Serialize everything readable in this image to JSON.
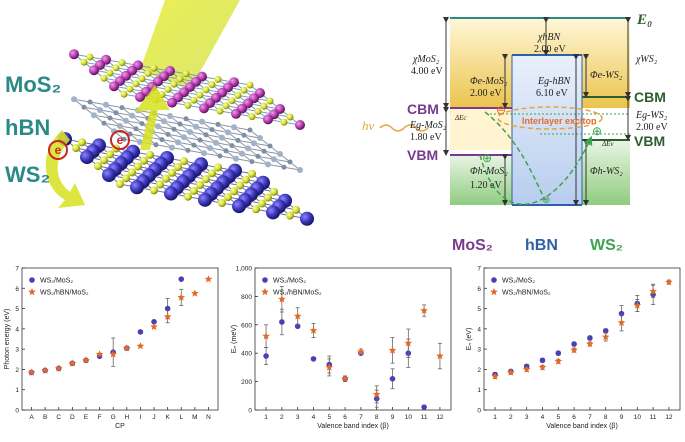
{
  "colors": {
    "mos2": "#7a3b8f",
    "hbn": "#2f5fa5",
    "ws2": "#3fa34d",
    "teal": "#2a8a86",
    "green_dark": "#2e5e2e",
    "blue_dot": "#4b3fb5",
    "orange_star": "#e46a2a",
    "gold": "#e9c75a"
  },
  "structure": {
    "labels": {
      "mos2": "MoS₂",
      "hbn": "hBN",
      "ws2": "WS₂"
    },
    "electron_symbols": [
      "e",
      "e"
    ]
  },
  "band_diagram": {
    "E0": "E₀",
    "CBM": "CBM",
    "VBM": "VBM",
    "hv": "hν",
    "interlayer": "Interlayer exciton",
    "chi_mos2_label": "χMoS₂",
    "chi_mos2_value": "4.00 eV",
    "chi_hbn_label": "χhBN",
    "chi_hbn_value": "2.00 eV",
    "chi_ws2_label": "χWS₂",
    "phi_e_mos2_label": "Φe-MoS₂",
    "phi_e_mos2_value": "2.00 eV",
    "eg_hbn_label": "Eg-hBN",
    "eg_hbn_value": "6.10 eV",
    "phi_e_ws2_label": "Φe-WS₂",
    "eg_mos2_label": "Eg-MoS₂",
    "eg_mos2_value": "1.80 eV",
    "eg_ws2_label": "Eg-WS₂",
    "eg_ws2_value": "2.00 eV",
    "dec_label": "ΔEc",
    "dev_label": "ΔEv",
    "phi_h_mos2_label": "Φh-MoS₂",
    "phi_h_mos2_value": "1.20 eV",
    "phi_h_ws2_label": "Φh-WS₂",
    "bottom_mos2": "MoS₂",
    "bottom_hbn": "hBN",
    "bottom_ws2": "WS₂",
    "plus": "⊕",
    "minus": "⊖"
  },
  "chart_data": [
    {
      "type": "scatter",
      "xlabel": "CP",
      "ylabel": "Photon energy (eV)",
      "ylim": [
        0,
        7
      ],
      "yticks": [
        "0",
        "1",
        "2",
        "3",
        "4",
        "5",
        "6",
        "7"
      ],
      "categories": [
        "A",
        "B",
        "C",
        "D",
        "E",
        "F",
        "G",
        "H",
        "I",
        "J",
        "K",
        "L",
        "M",
        "N"
      ],
      "legend": [
        "WS₂/MoS₂",
        "WS₂/hBN/MoS₂"
      ],
      "series": [
        {
          "name": "WS₂/MoS₂",
          "marker": "circle",
          "values": [
            1.85,
            1.95,
            2.05,
            2.3,
            2.45,
            2.65,
            2.85,
            3.05,
            3.85,
            4.35,
            5.0,
            6.45,
            null,
            null
          ],
          "err": [
            0,
            0,
            0,
            0,
            0,
            0,
            0.7,
            0,
            0,
            0,
            0.5,
            0,
            0,
            0
          ]
        },
        {
          "name": "WS₂/hBN/MoS₂",
          "marker": "star",
          "values": [
            1.85,
            1.95,
            2.05,
            2.3,
            2.45,
            2.75,
            2.75,
            3.05,
            3.15,
            4.1,
            4.6,
            5.55,
            5.75,
            6.45
          ],
          "err": [
            0,
            0,
            0,
            0,
            0,
            0,
            0,
            0,
            0,
            0,
            0.3,
            0.4,
            0,
            0
          ]
        }
      ]
    },
    {
      "type": "scatter",
      "xlabel": "Valence band index (β)",
      "ylabel": "Eₙ (meV)",
      "ylim": [
        0,
        1000
      ],
      "yticks": [
        "0",
        "200",
        "400",
        "600",
        "800",
        "1,000"
      ],
      "categories": [
        "1",
        "2",
        "3",
        "4",
        "5",
        "6",
        "7",
        "8",
        "9",
        "10",
        "11",
        "12"
      ],
      "legend": [
        "WS₂/MoS₂",
        "WS₂/hBN/MoS₂"
      ],
      "series": [
        {
          "name": "WS₂/MoS₂",
          "marker": "circle",
          "values": [
            380,
            620,
            590,
            360,
            320,
            220,
            400,
            80,
            220,
            400,
            20,
            null
          ],
          "err": [
            60,
            90,
            0,
            0,
            60,
            0,
            0,
            60,
            70,
            100,
            0,
            0
          ]
        },
        {
          "name": "WS₂/hBN/MoS₂",
          "marker": "star",
          "values": [
            520,
            780,
            660,
            560,
            300,
            220,
            410,
            110,
            420,
            470,
            700,
            380
          ],
          "err": [
            80,
            90,
            60,
            50,
            60,
            20,
            20,
            60,
            90,
            100,
            40,
            90
          ]
        }
      ]
    },
    {
      "type": "scatter",
      "xlabel": "Valence band index (β)",
      "ylabel": "Eₙ (eV)",
      "ylim": [
        0,
        7
      ],
      "yticks": [
        "0",
        "1",
        "2",
        "3",
        "4",
        "5",
        "6",
        "7"
      ],
      "categories": [
        "1",
        "2",
        "3",
        "4",
        "5",
        "6",
        "7",
        "8",
        "9",
        "10",
        "11",
        "12"
      ],
      "legend": [
        "WS₂/MoS₂",
        "WS₂/hBN/MoS₂"
      ],
      "series": [
        {
          "name": "WS₂/MoS₂",
          "marker": "circle",
          "values": [
            1.75,
            1.9,
            2.15,
            2.45,
            2.8,
            3.25,
            3.55,
            3.9,
            4.75,
            5.25,
            5.7,
            null
          ],
          "err": [
            0.1,
            0.1,
            0.1,
            0.1,
            0.1,
            0.1,
            0.1,
            0.1,
            0.4,
            0.4,
            0.5,
            0
          ]
        },
        {
          "name": "WS₂/hBN/MoS₂",
          "marker": "star",
          "values": [
            1.65,
            1.85,
            2.0,
            2.1,
            2.4,
            2.95,
            3.25,
            3.6,
            4.3,
            5.15,
            5.85,
            6.3
          ],
          "err": [
            0.1,
            0.1,
            0.1,
            0.1,
            0.1,
            0.1,
            0.1,
            0.2,
            0.4,
            0.3,
            0.3,
            0.1
          ]
        }
      ]
    }
  ]
}
